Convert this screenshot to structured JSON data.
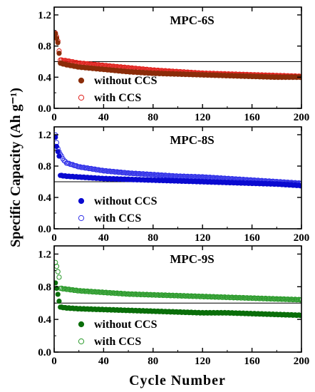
{
  "shared": {
    "ylabel": "Specific Capacity (Ah g⁻¹)",
    "xlabel": "Cycle Number",
    "legend_without": "without CCS",
    "legend_with": "with CCS"
  },
  "chart_data": [
    {
      "type": "scatter",
      "title": "MPC-6S",
      "xlim": [
        0,
        200
      ],
      "ylim": [
        0,
        1.3
      ],
      "x_ticks": [
        "0",
        "40",
        "80",
        "120",
        "160",
        "200"
      ],
      "y_ticks": [
        "0.0",
        "0.4",
        "0.8",
        "1.2"
      ],
      "reference_line": 0.6,
      "legend_position": "bottom-left",
      "colors": {
        "without": "#8b2d0a",
        "with": "#e0201c"
      },
      "series": [
        {
          "name": "without CCS",
          "marker": "filled",
          "points": [
            [
              1,
              0.96
            ],
            [
              2,
              0.9
            ],
            [
              3,
              0.84
            ],
            [
              5,
              0.58
            ],
            [
              10,
              0.56
            ],
            [
              20,
              0.53
            ],
            [
              40,
              0.5
            ],
            [
              60,
              0.47
            ],
            [
              80,
              0.45
            ],
            [
              100,
              0.44
            ],
            [
              120,
              0.43
            ],
            [
              140,
              0.42
            ],
            [
              160,
              0.41
            ],
            [
              180,
              0.4
            ],
            [
              200,
              0.4
            ]
          ]
        },
        {
          "name": "with CCS",
          "marker": "open",
          "points": [
            [
              1,
              0.97
            ],
            [
              2,
              0.92
            ],
            [
              3,
              0.86
            ],
            [
              5,
              0.62
            ],
            [
              10,
              0.61
            ],
            [
              20,
              0.58
            ],
            [
              40,
              0.55
            ],
            [
              60,
              0.52
            ],
            [
              80,
              0.49
            ],
            [
              100,
              0.47
            ],
            [
              120,
              0.45
            ],
            [
              140,
              0.44
            ],
            [
              160,
              0.43
            ],
            [
              180,
              0.42
            ],
            [
              200,
              0.41
            ]
          ]
        }
      ]
    },
    {
      "type": "scatter",
      "title": "MPC-8S",
      "xlim": [
        0,
        200
      ],
      "ylim": [
        0,
        1.3
      ],
      "x_ticks": [
        "0",
        "40",
        "80",
        "120",
        "160",
        "200"
      ],
      "y_ticks": [
        "0.0",
        "0.4",
        "0.8",
        "1.2"
      ],
      "reference_line": 0.6,
      "legend_position": "bottom-left",
      "colors": {
        "without": "#0a0ad0",
        "with": "#3030e8"
      },
      "series": [
        {
          "name": "without CCS",
          "marker": "filled",
          "points": [
            [
              1,
              1.17
            ],
            [
              2,
              1.05
            ],
            [
              3,
              0.98
            ],
            [
              4,
              0.93
            ],
            [
              5,
              0.68
            ],
            [
              10,
              0.67
            ],
            [
              20,
              0.66
            ],
            [
              40,
              0.64
            ],
            [
              60,
              0.63
            ],
            [
              80,
              0.62
            ],
            [
              100,
              0.61
            ],
            [
              120,
              0.6
            ],
            [
              140,
              0.59
            ],
            [
              160,
              0.58
            ],
            [
              180,
              0.57
            ],
            [
              200,
              0.55
            ]
          ]
        },
        {
          "name": "with CCS",
          "marker": "open",
          "points": [
            [
              1,
              1.2
            ],
            [
              2,
              1.1
            ],
            [
              3,
              1.02
            ],
            [
              5,
              0.95
            ],
            [
              8,
              0.87
            ],
            [
              10,
              0.84
            ],
            [
              20,
              0.79
            ],
            [
              40,
              0.74
            ],
            [
              60,
              0.71
            ],
            [
              80,
              0.69
            ],
            [
              100,
              0.67
            ],
            [
              120,
              0.66
            ],
            [
              140,
              0.64
            ],
            [
              160,
              0.62
            ],
            [
              180,
              0.6
            ],
            [
              200,
              0.58
            ]
          ]
        }
      ]
    },
    {
      "type": "scatter",
      "title": "MPC-9S",
      "xlim": [
        0,
        200
      ],
      "ylim": [
        0,
        1.3
      ],
      "x_ticks": [
        "0",
        "40",
        "80",
        "120",
        "160",
        "200"
      ],
      "y_ticks": [
        "0.0",
        "0.4",
        "0.8",
        "1.2"
      ],
      "reference_line": 0.6,
      "legend_position": "bottom-left",
      "colors": {
        "without": "#0a6e0a",
        "with": "#2a9a2a"
      },
      "series": [
        {
          "name": "without CCS",
          "marker": "filled",
          "points": [
            [
              1,
              0.85
            ],
            [
              2,
              0.78
            ],
            [
              5,
              0.55
            ],
            [
              10,
              0.54
            ],
            [
              20,
              0.53
            ],
            [
              40,
              0.52
            ],
            [
              60,
              0.51
            ],
            [
              80,
              0.5
            ],
            [
              100,
              0.49
            ],
            [
              120,
              0.48
            ],
            [
              140,
              0.48
            ],
            [
              160,
              0.47
            ],
            [
              180,
              0.46
            ],
            [
              200,
              0.45
            ]
          ]
        },
        {
          "name": "with CCS",
          "marker": "open",
          "points": [
            [
              1,
              1.1
            ],
            [
              2,
              1.05
            ],
            [
              3,
              0.98
            ],
            [
              4,
              0.92
            ],
            [
              5,
              0.78
            ],
            [
              10,
              0.77
            ],
            [
              20,
              0.75
            ],
            [
              40,
              0.73
            ],
            [
              60,
              0.71
            ],
            [
              80,
              0.7
            ],
            [
              100,
              0.69
            ],
            [
              120,
              0.68
            ],
            [
              140,
              0.67
            ],
            [
              160,
              0.66
            ],
            [
              180,
              0.65
            ],
            [
              200,
              0.64
            ]
          ]
        }
      ]
    }
  ]
}
